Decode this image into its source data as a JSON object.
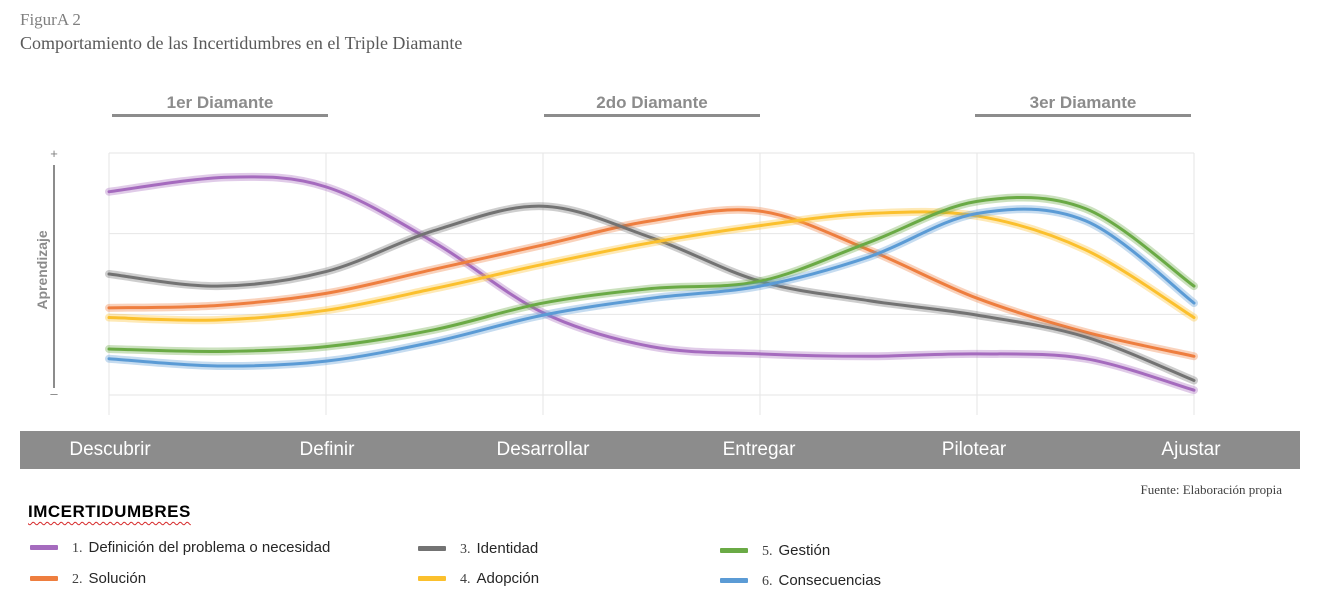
{
  "figure_label": "FigurA 2",
  "figure_title": "Comportamiento de las Incertidumbres en el Triple Diamante",
  "diamonds": [
    "1er Diamante",
    "2do Diamante",
    "3er Diamante"
  ],
  "source": "Fuente: Elaboración propia",
  "legend_title": "IMCERTIDUMBRES",
  "colors": {
    "purple": "#a56bbe",
    "orange": "#ee7e3f",
    "gray": "#737373",
    "yellow": "#fbc02d",
    "green": "#6aaa45",
    "blue": "#5b9bd5",
    "stage_bar": "#8c8c8c"
  },
  "chart_data": {
    "type": "line",
    "title": "Comportamiento de las Incertidumbres en el Triple Diamante",
    "xlabel": "",
    "ylabel": "Aprendizaje",
    "y_top_marker": "+",
    "y_bottom_marker": "–",
    "ylim": [
      0,
      100
    ],
    "categories": [
      "Descubrir",
      "Definir",
      "Desarrollar",
      "Entregar",
      "Pilotear",
      "Ajustar"
    ],
    "grid": true,
    "series": [
      {
        "name": "1. Definición del problema o necesidad",
        "color": "#a56bbe",
        "x": [
          0,
          0.55,
          1,
          1.5,
          2,
          2.5,
          3,
          3.5,
          4,
          4.5,
          5
        ],
        "values": [
          84,
          90,
          86,
          63,
          34,
          20,
          17,
          16,
          17,
          15,
          2
        ]
      },
      {
        "name": "2. Solución",
        "color": "#ee7e3f",
        "x": [
          0,
          0.5,
          1,
          1.5,
          2,
          2.5,
          3,
          3.5,
          4,
          4.5,
          5
        ],
        "values": [
          36,
          37,
          42,
          52,
          62,
          72,
          76,
          60,
          40,
          26,
          16
        ]
      },
      {
        "name": "3. Identidad",
        "color": "#737373",
        "x": [
          0,
          0.5,
          1,
          1.5,
          2,
          2.5,
          3,
          3.5,
          4,
          4.5,
          5
        ],
        "values": [
          50,
          45,
          51,
          68,
          78,
          65,
          47,
          39,
          33,
          24,
          6
        ]
      },
      {
        "name": "4. Adopción",
        "color": "#fbc02d",
        "x": [
          0,
          0.5,
          1,
          1.5,
          2,
          2.5,
          3,
          3.5,
          4,
          4.5,
          5
        ],
        "values": [
          32,
          31,
          35,
          44,
          54,
          63,
          70,
          75,
          74,
          60,
          32
        ]
      },
      {
        "name": "5. Gestión",
        "color": "#6aaa45",
        "x": [
          0,
          0.5,
          1,
          1.5,
          2,
          2.5,
          3,
          3.5,
          4,
          4.5,
          5
        ],
        "values": [
          19,
          18,
          20,
          27,
          38,
          44,
          47,
          63,
          80,
          77,
          45
        ]
      },
      {
        "name": "6. Consecuencias",
        "color": "#5b9bd5",
        "x": [
          0,
          0.5,
          1,
          1.5,
          2,
          2.5,
          3,
          3.5,
          4,
          4.5,
          5
        ],
        "values": [
          15,
          12,
          14,
          22,
          33,
          40,
          45,
          57,
          75,
          72,
          38
        ]
      }
    ]
  },
  "legend": [
    {
      "num": "1.",
      "label": "Definición del problema o necesidad",
      "color": "#a56bbe"
    },
    {
      "num": "2.",
      "label": "Solución",
      "color": "#ee7e3f"
    },
    {
      "num": "3.",
      "label": "Identidad",
      "color": "#737373"
    },
    {
      "num": "4.",
      "label": "Adopción",
      "color": "#fbc02d"
    },
    {
      "num": "5.",
      "label": "Gestión",
      "color": "#6aaa45"
    },
    {
      "num": "6.",
      "label": "Consecuencias",
      "color": "#5b9bd5"
    }
  ]
}
